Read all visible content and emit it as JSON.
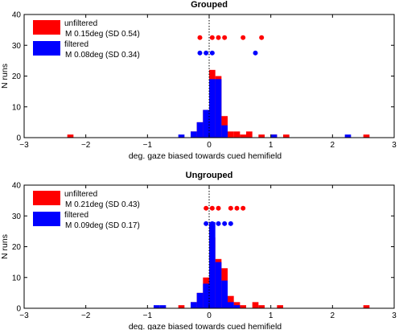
{
  "chart_data": [
    {
      "type": "bar",
      "title": "Grouped",
      "xlabel": "deg. gaze biased towards cued hemifield",
      "ylabel": "N runs",
      "xlim": [
        -3,
        3
      ],
      "ylim": [
        0,
        40
      ],
      "xticks": [
        "-3",
        "-2",
        "-1",
        "0",
        "1",
        "2",
        "3"
      ],
      "yticks": [
        "0",
        "10",
        "20",
        "30",
        "40"
      ],
      "bin_width": 0.1,
      "legend_placement": "top-left",
      "grid": false,
      "reference_line_x": 0,
      "series": [
        {
          "name": "unfiltered",
          "stat_label": "M 0.15deg (SD 0.54)",
          "color": "#ff0000",
          "bars": [
            {
              "x": -2.25,
              "value": 1
            },
            {
              "x": -0.25,
              "value": 2
            },
            {
              "x": -0.15,
              "value": 5
            },
            {
              "x": -0.05,
              "value": 9
            },
            {
              "x": 0.05,
              "value": 22
            },
            {
              "x": 0.15,
              "value": 20
            },
            {
              "x": 0.25,
              "value": 7
            },
            {
              "x": 0.35,
              "value": 2
            },
            {
              "x": 0.45,
              "value": 2
            },
            {
              "x": 0.55,
              "value": 1
            },
            {
              "x": 0.65,
              "value": 2
            },
            {
              "x": 0.85,
              "value": 1
            },
            {
              "x": 1.05,
              "value": 1
            },
            {
              "x": 1.25,
              "value": 1
            },
            {
              "x": 2.55,
              "value": 1
            }
          ],
          "dots_x": [
            -0.15,
            0.05,
            0.15,
            0.25,
            0.55,
            0.85
          ]
        },
        {
          "name": "filtered",
          "stat_label": "M 0.08deg (SD 0.34)",
          "color": "#0000ff",
          "bars": [
            {
              "x": -0.45,
              "value": 1
            },
            {
              "x": -0.25,
              "value": 2
            },
            {
              "x": -0.15,
              "value": 5
            },
            {
              "x": -0.05,
              "value": 9
            },
            {
              "x": 0.05,
              "value": 19
            },
            {
              "x": 0.15,
              "value": 19
            },
            {
              "x": 0.25,
              "value": 4
            },
            {
              "x": 1.05,
              "value": 1
            },
            {
              "x": 2.25,
              "value": 1
            }
          ],
          "dots_x": [
            -0.15,
            -0.05,
            0.05,
            0.75
          ]
        }
      ]
    },
    {
      "type": "bar",
      "title": "Ungrouped",
      "xlabel": "deg. gaze biased towards cued hemifield",
      "ylabel": "N runs",
      "xlim": [
        -3,
        3
      ],
      "ylim": [
        0,
        40
      ],
      "xticks": [
        "-3",
        "-2",
        "-1",
        "0",
        "1",
        "2",
        "3"
      ],
      "yticks": [
        "0",
        "10",
        "20",
        "30",
        "40"
      ],
      "bin_width": 0.1,
      "legend_placement": "top-left",
      "grid": false,
      "reference_line_x": 0,
      "series": [
        {
          "name": "unfiltered",
          "stat_label": "M 0.21deg (SD 0.43)",
          "color": "#ff0000",
          "bars": [
            {
              "x": -0.45,
              "value": 1
            },
            {
              "x": -0.25,
              "value": 2
            },
            {
              "x": -0.15,
              "value": 5
            },
            {
              "x": -0.05,
              "value": 10
            },
            {
              "x": 0.05,
              "value": 23
            },
            {
              "x": 0.15,
              "value": 16
            },
            {
              "x": 0.25,
              "value": 13
            },
            {
              "x": 0.35,
              "value": 4
            },
            {
              "x": 0.45,
              "value": 2
            },
            {
              "x": 0.55,
              "value": 1
            },
            {
              "x": 0.75,
              "value": 2
            },
            {
              "x": 0.85,
              "value": 1
            },
            {
              "x": 1.15,
              "value": 1
            },
            {
              "x": 2.55,
              "value": 1
            }
          ],
          "dots_x": [
            -0.05,
            0.05,
            0.15,
            0.35,
            0.45,
            0.55
          ]
        },
        {
          "name": "filtered",
          "stat_label": "M 0.09deg (SD 0.17)",
          "color": "#0000ff",
          "bars": [
            {
              "x": -0.85,
              "value": 1
            },
            {
              "x": -0.75,
              "value": 1
            },
            {
              "x": -0.25,
              "value": 2
            },
            {
              "x": -0.15,
              "value": 5
            },
            {
              "x": -0.05,
              "value": 8
            },
            {
              "x": 0.05,
              "value": 28
            },
            {
              "x": 0.15,
              "value": 15
            },
            {
              "x": 0.25,
              "value": 9
            },
            {
              "x": 0.35,
              "value": 2
            },
            {
              "x": 0.45,
              "value": 1
            }
          ],
          "dots_x": [
            -0.05,
            0.05,
            0.15,
            0.25,
            0.35
          ]
        }
      ]
    }
  ]
}
